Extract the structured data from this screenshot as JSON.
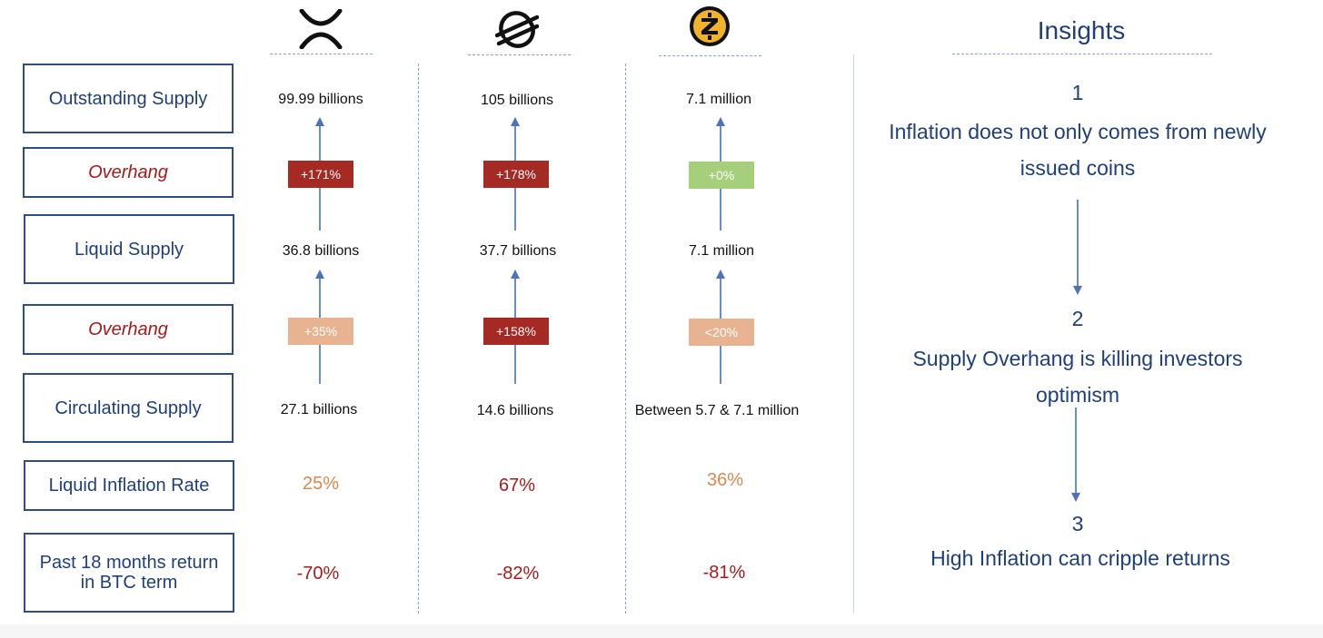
{
  "rows": [
    {
      "label": "Outstanding Supply",
      "style": "normal"
    },
    {
      "label": "Overhang",
      "style": "italic"
    },
    {
      "label": "Liquid Supply",
      "style": "normal"
    },
    {
      "label": "Overhang",
      "style": "italic"
    },
    {
      "label": "Circulating Supply",
      "style": "normal"
    },
    {
      "label": "Liquid Inflation Rate",
      "style": "normal"
    },
    {
      "label": "Past 18 months return in BTC term",
      "style": "normal"
    }
  ],
  "columns": [
    {
      "logo": "xrp-x-logo",
      "outstanding": "99.99 billions",
      "overhang1": "+171%",
      "liquid": "36.8 billions",
      "overhang2": "+35%",
      "circulating": "27.1 billions",
      "inflation": "25%",
      "return": "-70%"
    },
    {
      "logo": "stellar-logo",
      "outstanding": "105 billions",
      "overhang1": "+178%",
      "liquid": "37.7 billions",
      "overhang2": "+158%",
      "circulating": "14.6 billions",
      "inflation": "67%",
      "return": "-82%"
    },
    {
      "logo": "zcash-logo",
      "outstanding": "7.1 million",
      "overhang1": "+0%",
      "liquid": "7.1 million",
      "overhang2": "<20%",
      "circulating": "Between 5.7 & 7.1 million",
      "inflation": "36%",
      "return": "-81%"
    }
  ],
  "insights": {
    "title": "Insights",
    "items": [
      {
        "number": "1",
        "text": "Inflation does not only comes from newly issued coins"
      },
      {
        "number": "2",
        "text": "Supply Overhang is killing investors optimism"
      },
      {
        "number": "3",
        "text": "High Inflation can cripple returns"
      }
    ]
  },
  "colors": {
    "navy": "#1f3f7a",
    "badge_dark_red": "#a52a24",
    "badge_light_orange": "#e8b391",
    "badge_green": "#a5cf7a",
    "rate_orange": "#d9884e",
    "rate_red": "#a31c1c"
  },
  "badge_styles": [
    "dark-red",
    "dark-red",
    "green",
    "light-orange",
    "dark-red",
    "light-orange"
  ],
  "rate_styles": [
    "orange",
    "red",
    "orange"
  ]
}
